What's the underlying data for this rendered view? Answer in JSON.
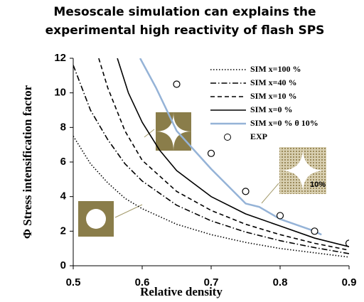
{
  "chart_data": {
    "type": "line",
    "title": "Mesoscale simulation can explains the experimental high reactivity of flash SPS",
    "xlabel": "Relative density",
    "ylabel": "Φ Stress intensification factor",
    "xlim": [
      0.5,
      0.9
    ],
    "xticks": [
      0.5,
      0.6,
      0.7,
      0.8,
      0.9
    ],
    "ylim": [
      0,
      12
    ],
    "yticks": [
      0,
      2,
      4,
      6,
      8,
      10,
      12
    ],
    "annotation": "10%",
    "series": [
      {
        "name": "SIM x=100 %",
        "color": "#000000",
        "dash": "dotted",
        "x": [
          0.5,
          0.525,
          0.55,
          0.575,
          0.6,
          0.65,
          0.7,
          0.75,
          0.8,
          0.85,
          0.9
        ],
        "values": [
          7.5,
          5.9,
          4.8,
          3.9,
          3.3,
          2.4,
          1.8,
          1.35,
          1.0,
          0.75,
          0.5
        ]
      },
      {
        "name": "SIM x=40 %",
        "color": "#000000",
        "dash": "dashdot",
        "x": [
          0.5,
          0.525,
          0.55,
          0.575,
          0.6,
          0.65,
          0.7,
          0.75,
          0.8,
          0.85,
          0.9
        ],
        "values": [
          11.6,
          9.0,
          7.3,
          5.9,
          4.9,
          3.5,
          2.6,
          1.95,
          1.45,
          1.05,
          0.7
        ]
      },
      {
        "name": "SIM x=10 %",
        "color": "#000000",
        "dash": "dashed",
        "x": [
          0.537,
          0.55,
          0.575,
          0.6,
          0.65,
          0.7,
          0.75,
          0.8,
          0.85,
          0.9
        ],
        "values": [
          12,
          10.3,
          7.8,
          6.1,
          4.3,
          3.2,
          2.4,
          1.8,
          1.3,
          0.9
        ]
      },
      {
        "name": "SIM x=0 %",
        "color": "#000000",
        "dash": "solid",
        "x": [
          0.564,
          0.58,
          0.6,
          0.625,
          0.65,
          0.7,
          0.75,
          0.8,
          0.85,
          0.9
        ],
        "values": [
          12,
          10.0,
          8.3,
          6.7,
          5.5,
          4.0,
          3.0,
          2.3,
          1.6,
          1.1
        ]
      },
      {
        "name": "SIM x=0 % θ 10%",
        "color": "#95b3d7",
        "dash": "solid",
        "x": [
          0.597,
          0.62,
          0.65,
          0.7,
          0.75,
          0.77,
          0.8,
          0.85,
          0.86
        ],
        "values": [
          12,
          10.3,
          7.8,
          5.6,
          3.6,
          3.4,
          2.7,
          2.0,
          1.8
        ]
      },
      {
        "name": "EXP",
        "color": "#000000",
        "dash": "markers",
        "x": [
          0.65,
          0.7,
          0.75,
          0.8,
          0.85,
          0.9
        ],
        "values": [
          10.5,
          6.5,
          4.3,
          2.9,
          2.0,
          1.3
        ]
      }
    ]
  }
}
